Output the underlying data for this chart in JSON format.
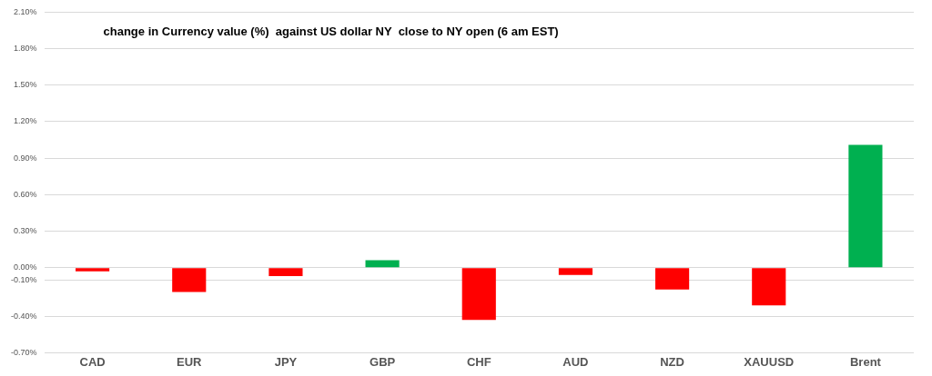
{
  "chart_data": {
    "type": "bar",
    "title": "change in Currency value (%)  against US dollar NY  close to NY open (6 am EST)",
    "categories": [
      "CAD",
      "EUR",
      "JPY",
      "GBP",
      "CHF",
      "AUD",
      "NZD",
      "XAUUSD",
      "Brent"
    ],
    "values": [
      -0.03,
      -0.2,
      -0.07,
      0.06,
      -0.43,
      -0.06,
      -0.18,
      -0.31,
      1.01
    ],
    "colors": [
      "#ff0000",
      "#ff0000",
      "#ff0000",
      "#00b050",
      "#ff0000",
      "#ff0000",
      "#ff0000",
      "#ff0000",
      "#00b050"
    ],
    "ylim": [
      -0.7,
      2.1
    ],
    "yticks": [
      {
        "value": -0.7,
        "label": "-0.70%"
      },
      {
        "value": -0.4,
        "label": "-0.40%"
      },
      {
        "value": -0.1,
        "label": "-0.10%"
      },
      {
        "value": 0,
        "label": "0.00%"
      },
      {
        "value": 0.3,
        "label": "0.30%"
      },
      {
        "value": 0.6,
        "label": "0.60%"
      },
      {
        "value": 0.9,
        "label": "0.90%"
      },
      {
        "value": 1.2,
        "label": "1.20%"
      },
      {
        "value": 1.5,
        "label": "1.50%"
      },
      {
        "value": 1.8,
        "label": "1.80%"
      },
      {
        "value": 2.1,
        "label": "2.10%"
      }
    ],
    "grid": "y"
  }
}
